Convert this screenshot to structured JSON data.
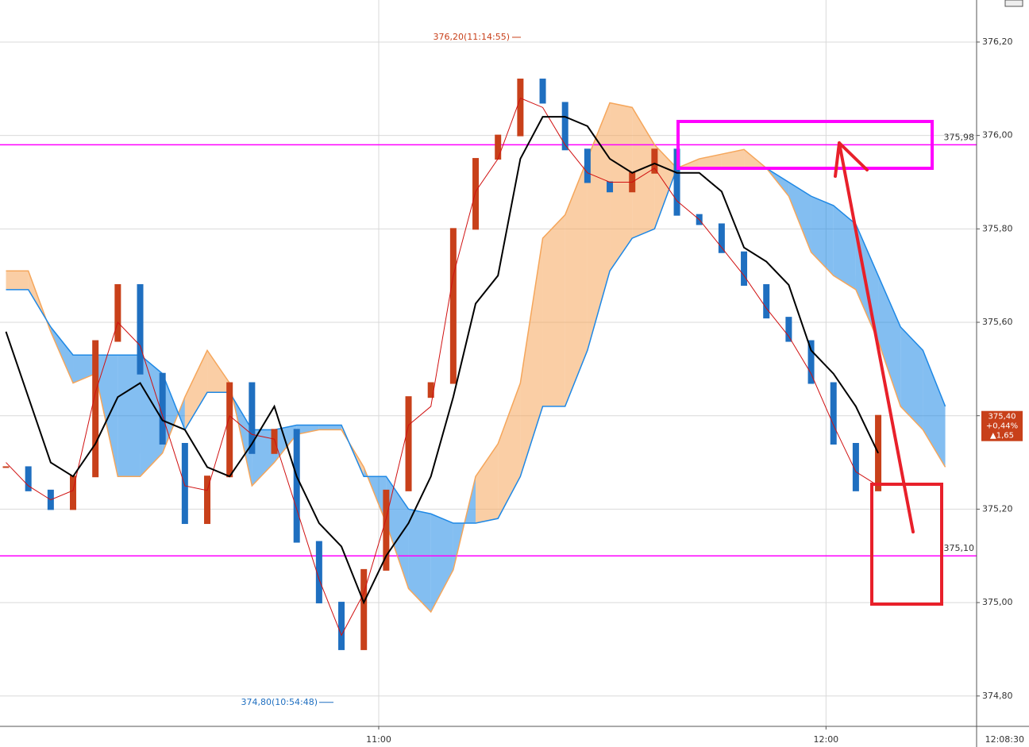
{
  "chart_data": {
    "type": "ichimoku",
    "x": [
      610,
      613,
      616,
      619,
      622,
      625,
      628,
      631,
      634,
      637,
      640,
      643,
      646,
      649,
      652,
      655,
      658,
      661,
      664,
      667,
      670,
      673,
      676,
      679,
      682,
      685,
      688,
      691,
      694,
      697,
      700,
      703,
      706,
      709,
      712,
      715,
      718,
      721,
      724,
      727,
      730,
      733,
      736
    ],
    "xlim": [
      609.2,
      740.2
    ],
    "xticks": [
      {
        "value": 660,
        "label": "11:00"
      },
      {
        "value": 720,
        "label": "12:00"
      }
    ],
    "current_time": {
      "value": 728.5,
      "label": "12:08:30"
    },
    "ylim": [
      374.735,
      376.29
    ],
    "yticks": [
      {
        "value": 374.8,
        "label": "374,80"
      },
      {
        "value": 375.0,
        "label": "375,00"
      },
      {
        "value": 375.2,
        "label": "375,20"
      },
      {
        "value": 375.4,
        "label": "375,40"
      },
      {
        "value": 375.6,
        "label": "375,60"
      },
      {
        "value": 375.8,
        "label": "375,80"
      },
      {
        "value": 376.0,
        "label": "376,00"
      },
      {
        "value": 376.2,
        "label": "376,20"
      }
    ],
    "grid": true,
    "series": [
      {
        "name": "price",
        "color": "#c8401a",
        "down_color": "#1f6fc0",
        "values": [
          375.29,
          375.24,
          375.2,
          375.27,
          375.56,
          375.68,
          375.49,
          375.34,
          375.17,
          375.27,
          375.47,
          375.32,
          375.37,
          375.13,
          375.0,
          374.9,
          375.07,
          375.24,
          375.44,
          375.47,
          375.8,
          375.95,
          376.0,
          376.12,
          376.07,
          375.97,
          375.9,
          375.88,
          375.92,
          375.97,
          375.83,
          375.81,
          375.75,
          375.68,
          375.61,
          375.56,
          375.47,
          375.34,
          375.24,
          375.4,
          null,
          null,
          null
        ]
      },
      {
        "name": "conversion",
        "color": "#d01010",
        "values": [
          375.3,
          375.25,
          375.22,
          375.24,
          375.45,
          375.6,
          375.55,
          375.4,
          375.25,
          375.24,
          375.4,
          375.36,
          375.35,
          375.2,
          375.05,
          374.93,
          375.02,
          375.18,
          375.38,
          375.42,
          375.7,
          375.88,
          375.95,
          376.08,
          376.06,
          375.98,
          375.92,
          375.9,
          375.9,
          375.93,
          375.86,
          375.82,
          375.76,
          375.7,
          375.63,
          375.57,
          375.49,
          375.38,
          375.28,
          375.25,
          null,
          null,
          null
        ]
      },
      {
        "name": "base",
        "color": "#000000",
        "values": [
          375.58,
          375.44,
          375.3,
          375.27,
          375.34,
          375.44,
          375.47,
          375.39,
          375.37,
          375.29,
          375.27,
          375.34,
          375.42,
          375.27,
          375.17,
          375.12,
          375.0,
          375.1,
          375.17,
          375.27,
          375.44,
          375.64,
          375.7,
          375.95,
          376.04,
          376.04,
          376.02,
          375.95,
          375.92,
          375.94,
          375.92,
          375.92,
          375.88,
          375.76,
          375.73,
          375.68,
          375.54,
          375.49,
          375.42,
          375.32,
          null,
          null,
          null
        ]
      },
      {
        "name": "span-a",
        "color": "#f5a65b",
        "values": [
          375.71,
          375.71,
          375.58,
          375.47,
          375.49,
          375.27,
          375.27,
          375.32,
          375.44,
          375.54,
          375.47,
          375.25,
          375.3,
          375.36,
          375.37,
          375.37,
          375.29,
          375.17,
          375.03,
          374.98,
          375.07,
          375.27,
          375.34,
          375.47,
          375.78,
          375.83,
          375.95,
          376.07,
          376.06,
          375.98,
          375.93,
          375.95,
          375.96,
          375.97,
          375.93,
          375.87,
          375.75,
          375.7,
          375.67,
          375.56,
          375.42,
          375.37,
          375.29
        ]
      },
      {
        "name": "span-b",
        "color": "#1e88e5",
        "values": [
          375.67,
          375.67,
          375.59,
          375.53,
          375.53,
          375.53,
          375.53,
          375.49,
          375.37,
          375.45,
          375.45,
          375.37,
          375.37,
          375.38,
          375.38,
          375.38,
          375.27,
          375.27,
          375.2,
          375.19,
          375.17,
          375.17,
          375.18,
          375.27,
          375.42,
          375.42,
          375.54,
          375.71,
          375.78,
          375.8,
          375.93,
          375.93,
          375.93,
          375.93,
          375.93,
          375.9,
          375.87,
          375.85,
          375.81,
          375.7,
          375.59,
          375.54,
          375.42
        ]
      }
    ],
    "levels": [
      {
        "value": 375.98,
        "label": "375,98",
        "color": "#ff00ff"
      },
      {
        "value": 375.1,
        "label": "375,10",
        "color": "#ff00ff"
      }
    ],
    "high": {
      "value": 376.2,
      "label": "376,20(11:14:55)"
    },
    "low": {
      "value": 374.8,
      "label": "374,80(10:54:48)"
    },
    "last_price": {
      "value": 375.4,
      "label": "375,40"
    },
    "change_pct": {
      "value": 0.44,
      "label": "+0,44%"
    },
    "change": {
      "value": 1.65,
      "label": "▲1,65"
    }
  }
}
